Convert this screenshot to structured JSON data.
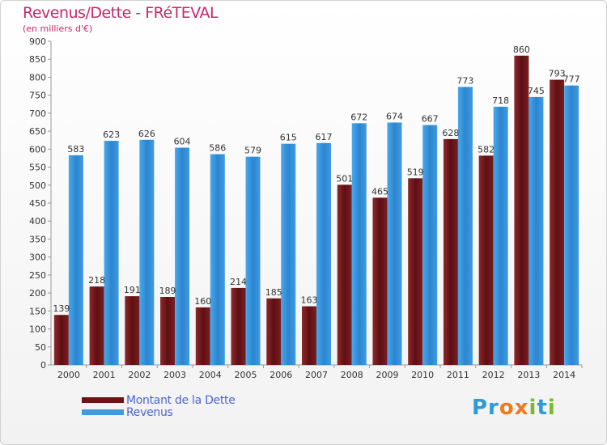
{
  "title": "Revenus/Dette - FRéTEVAL",
  "subtitle": "(en milliers d'€)",
  "logo": {
    "p": "Pr",
    "o": "o",
    "x": "x",
    "i": "i",
    "t": "t",
    "i2": "i"
  },
  "colors": {
    "dette": "#6b1416",
    "revenus": "#2d87d0",
    "axis_text": "#333333",
    "title": "#c8276b",
    "legend_text": "#4c66c9"
  },
  "chart_data": {
    "type": "bar",
    "title": "Revenus/Dette - FRéTEVAL",
    "ylabel": "(en milliers d'€)",
    "xlabel": "",
    "ylim": [
      0,
      900
    ],
    "yticks": [
      0,
      50,
      100,
      150,
      200,
      250,
      300,
      350,
      400,
      450,
      500,
      550,
      600,
      650,
      700,
      750,
      800,
      850,
      900
    ],
    "grid": false,
    "legend_position": "bottom-left",
    "categories": [
      "2000",
      "2001",
      "2002",
      "2003",
      "2004",
      "2005",
      "2006",
      "2007",
      "2008",
      "2009",
      "2010",
      "2011",
      "2012",
      "2013",
      "2014"
    ],
    "series": [
      {
        "name": "Montant de la Dette",
        "values": [
          139,
          218,
          191,
          189,
          160,
          214,
          185,
          163,
          501,
          465,
          519,
          628,
          582,
          860,
          793
        ]
      },
      {
        "name": "Revenus",
        "values": [
          583,
          623,
          626,
          604,
          586,
          579,
          615,
          617,
          672,
          674,
          667,
          773,
          718,
          745,
          777
        ]
      }
    ]
  }
}
